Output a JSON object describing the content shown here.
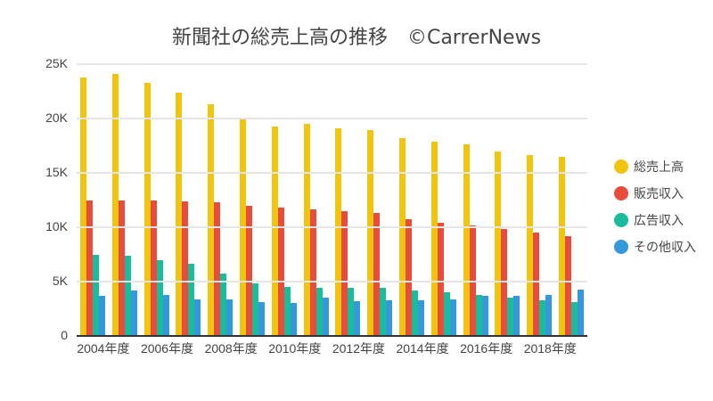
{
  "title": "新聞社の総売上高の推移　©CarrerNews",
  "legend": [
    {
      "label": "総売上高",
      "color": "#f1c40f"
    },
    {
      "label": "販売収入",
      "color": "#e74c3c"
    },
    {
      "label": "広告収入",
      "color": "#1abc9c"
    },
    {
      "label": "その他収入",
      "color": "#3498db"
    }
  ],
  "y_ticks": [
    "0",
    "5K",
    "10K",
    "15K",
    "20K",
    "25K"
  ],
  "x_ticks": [
    "2004年度",
    "2006年度",
    "2008年度",
    "2010年度",
    "2012年度",
    "2014年度",
    "2016年度",
    "2018年度"
  ],
  "chart_data": {
    "type": "bar",
    "title": "新聞社の総売上高の推移　©CarrerNews",
    "xlabel": "",
    "ylabel": "",
    "ylim": [
      0,
      25000
    ],
    "grid": true,
    "legend_position": "right",
    "categories": [
      "2004年度",
      "2005年度",
      "2006年度",
      "2007年度",
      "2008年度",
      "2009年度",
      "2010年度",
      "2011年度",
      "2012年度",
      "2013年度",
      "2014年度",
      "2015年度",
      "2016年度",
      "2017年度",
      "2018年度",
      "2019年度"
    ],
    "series": [
      {
        "name": "総売上高",
        "color": "#f1c40f",
        "values": [
          23800,
          24100,
          23300,
          22400,
          21300,
          19900,
          19300,
          19500,
          19100,
          18900,
          18200,
          17900,
          17600,
          17000,
          16600,
          16500
        ]
      },
      {
        "name": "販売収入",
        "color": "#e74c3c",
        "values": [
          12500,
          12500,
          12500,
          12400,
          12300,
          12000,
          11800,
          11600,
          11500,
          11300,
          10700,
          10400,
          10200,
          9800,
          9500,
          9200
        ]
      },
      {
        "name": "広告収入",
        "color": "#1abc9c",
        "values": [
          7500,
          7400,
          7000,
          6600,
          5700,
          4800,
          4500,
          4400,
          4400,
          4400,
          4200,
          4000,
          3800,
          3500,
          3300,
          3100
        ]
      },
      {
        "name": "その他収入",
        "color": "#3498db",
        "values": [
          3700,
          4200,
          3800,
          3400,
          3400,
          3100,
          3000,
          3500,
          3200,
          3300,
          3300,
          3400,
          3700,
          3700,
          3800,
          4300
        ]
      }
    ]
  }
}
